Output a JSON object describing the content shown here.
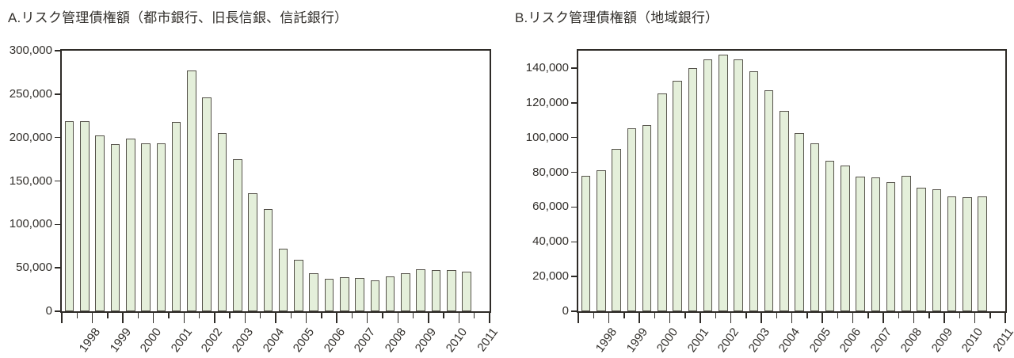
{
  "styles": {
    "bar_fill": "#e4efda",
    "bar_border": "#55524a",
    "axis_color": "#2e2b27",
    "text_color": "#33302c",
    "background": "#ffffff"
  },
  "chart_data": [
    {
      "id": "chart-a",
      "type": "bar",
      "title": "A.リスク管理債権額（都市銀行、旧長信銀、信託銀行）",
      "xlabel": "",
      "ylabel": "",
      "x_years": [
        "1998",
        "1999",
        "2000",
        "2001",
        "2002",
        "2003",
        "2004",
        "2005",
        "2006",
        "2007",
        "2008",
        "2009",
        "2010",
        "2011"
      ],
      "bars_per_year_through_2010": 2,
      "values": [
        219000,
        219000,
        202000,
        192000,
        198500,
        193500,
        193000,
        218000,
        277000,
        246500,
        205000,
        175000,
        136000,
        117500,
        72500,
        59000,
        43500,
        37000,
        39000,
        38000,
        35500,
        40500,
        44000,
        48000,
        47500,
        47500,
        45500
      ],
      "ylim": [
        0,
        300000
      ],
      "ytick_values": [
        0,
        50000,
        100000,
        150000,
        200000,
        250000,
        300000
      ],
      "ytick_labels": [
        "0",
        "50,000",
        "100,000",
        "150,000",
        "200,000",
        "250,000",
        "300,000"
      ],
      "grid": "off",
      "legend": "none"
    },
    {
      "id": "chart-b",
      "type": "bar",
      "title": "B.リスク管理債権額（地域銀行）",
      "xlabel": "",
      "ylabel": "",
      "x_years": [
        "1998",
        "1999",
        "2000",
        "2001",
        "2002",
        "2003",
        "2004",
        "2005",
        "2006",
        "2007",
        "2008",
        "2009",
        "2010",
        "2011"
      ],
      "bars_per_year_through_2010": 2,
      "values": [
        78000,
        81000,
        93500,
        105500,
        107000,
        125500,
        132500,
        140000,
        145000,
        147500,
        145000,
        138000,
        127000,
        115500,
        102500,
        96500,
        86500,
        84000,
        77500,
        77000,
        74500,
        78000,
        71000,
        70000,
        66000,
        65500,
        66000
      ],
      "ylim": [
        0,
        150000
      ],
      "ytick_values": [
        0,
        20000,
        40000,
        60000,
        80000,
        100000,
        120000,
        140000
      ],
      "ytick_labels": [
        "0",
        "20,000",
        "40,000",
        "60,000",
        "80,000",
        "100,000",
        "120,000",
        "140,000"
      ],
      "grid": "off",
      "legend": "none"
    }
  ]
}
